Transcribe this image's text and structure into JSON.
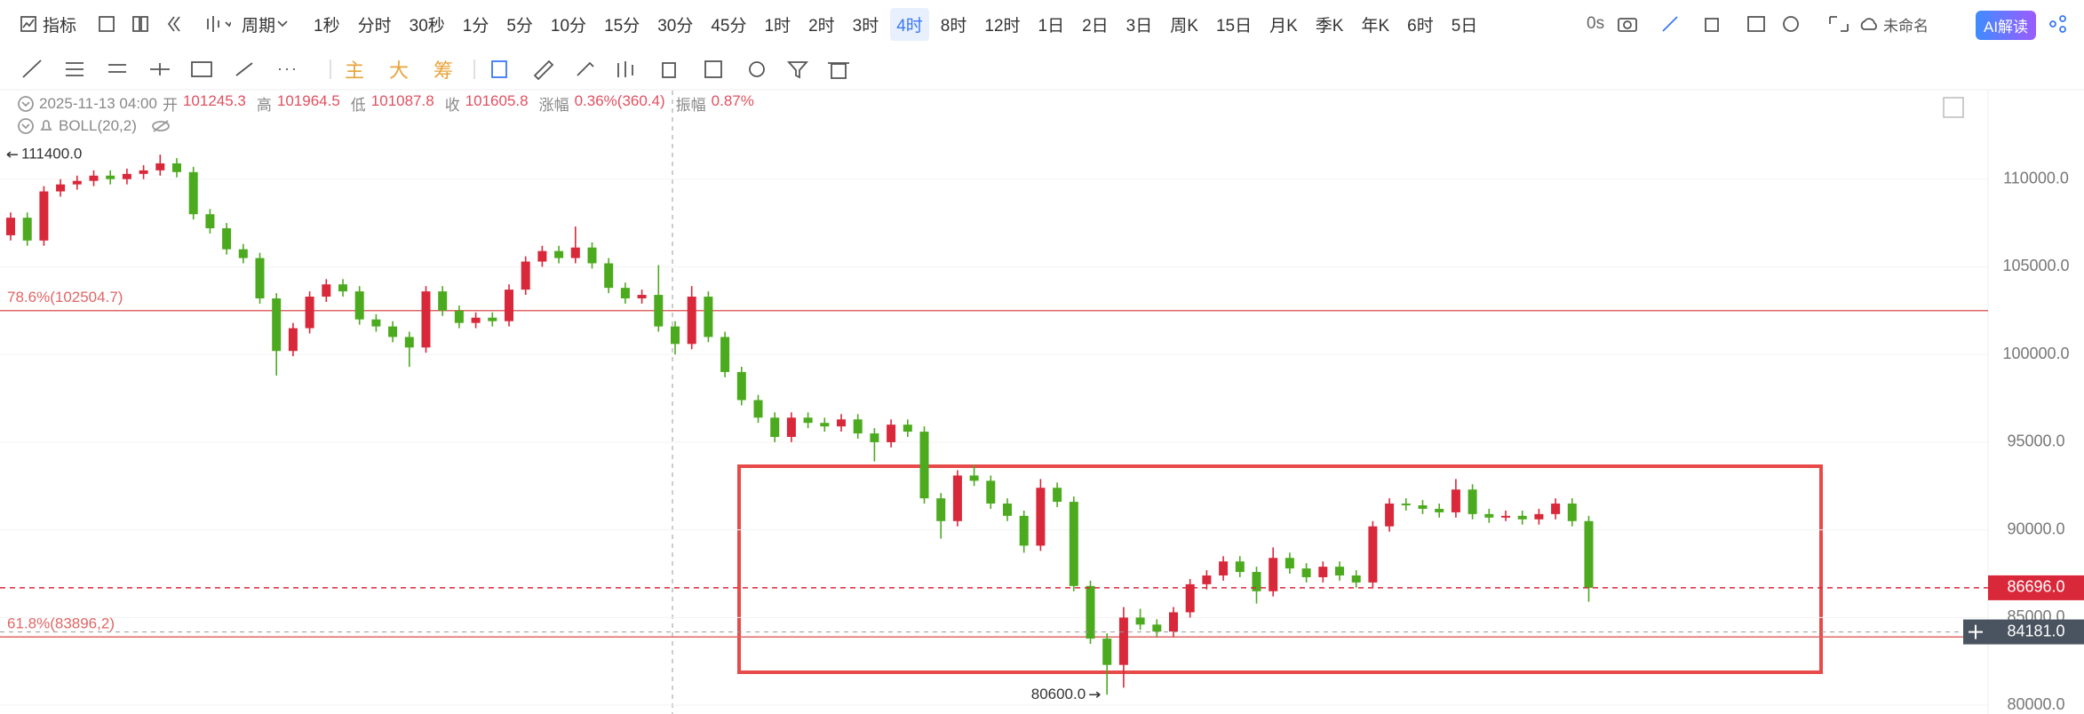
{
  "toolbar": {
    "indicator": "指标",
    "period": "周期",
    "intervals": [
      {
        "label": "1秒"
      },
      {
        "label": "分时"
      },
      {
        "label": "30秒"
      },
      {
        "label": "1分"
      },
      {
        "label": "5分"
      },
      {
        "label": "10分"
      },
      {
        "label": "15分"
      },
      {
        "label": "30分"
      },
      {
        "label": "45分"
      },
      {
        "label": "1时"
      },
      {
        "label": "2时"
      },
      {
        "label": "3时"
      },
      {
        "label": "4时",
        "active": true
      },
      {
        "label": "8时"
      },
      {
        "label": "12时"
      },
      {
        "label": "1日"
      },
      {
        "label": "2日"
      },
      {
        "label": "3日"
      },
      {
        "label": "周K"
      },
      {
        "label": "15日"
      },
      {
        "label": "月K"
      },
      {
        "label": "季K"
      },
      {
        "label": "年K"
      },
      {
        "label": "6时"
      },
      {
        "label": "5日"
      }
    ],
    "timer": "0s",
    "layout_name": "未命名",
    "ai": "AI解读",
    "tools": [
      "主",
      "大",
      "筹"
    ]
  },
  "info": {
    "time": "2025-11-13 04:00",
    "fields": [
      {
        "label": "开",
        "value": "101245.3"
      },
      {
        "label": "高",
        "value": "101964.5"
      },
      {
        "label": "低",
        "value": "101087.8"
      },
      {
        "label": "收",
        "value": "101605.8"
      },
      {
        "label": "涨幅",
        "value": "0.36%(360.4)"
      },
      {
        "label": "振幅",
        "value": "0.87%"
      }
    ],
    "indicator": "BOLL(20,2)"
  },
  "chart_data": {
    "type": "candlestick",
    "up_color": "#d9283a",
    "down_color": "#4caa1f",
    "ylim": [
      79500,
      115050
    ],
    "yticks": [
      {
        "value": 80000,
        "label": "80000.0"
      },
      {
        "value": 85000,
        "label": "85000.0"
      },
      {
        "value": 90000,
        "label": "90000.0"
      },
      {
        "value": 95000,
        "label": "95000.0"
      },
      {
        "value": 100000,
        "label": "100000.0"
      },
      {
        "value": 105000,
        "label": "105000.0"
      },
      {
        "value": 110000,
        "label": "110000.0"
      }
    ],
    "grid": true,
    "ohlc": [
      [
        106800,
        108100,
        106500,
        107800
      ],
      [
        107800,
        108100,
        106200,
        106500
      ],
      [
        106500,
        109600,
        106200,
        109300
      ],
      [
        109300,
        110000,
        109000,
        109700
      ],
      [
        109700,
        110200,
        109400,
        109900
      ],
      [
        109900,
        110500,
        109600,
        110200
      ],
      [
        110200,
        110500,
        109700,
        110000
      ],
      [
        110000,
        110600,
        109700,
        110300
      ],
      [
        110300,
        110800,
        110000,
        110500
      ],
      [
        110500,
        111400,
        110200,
        110900
      ],
      [
        110900,
        111200,
        110100,
        110400
      ],
      [
        110400,
        110700,
        107700,
        108000
      ],
      [
        108000,
        108300,
        106900,
        107200
      ],
      [
        107200,
        107500,
        105700,
        106000
      ],
      [
        106000,
        106300,
        105200,
        105500
      ],
      [
        105500,
        105800,
        102900,
        103200
      ],
      [
        103200,
        103500,
        98800,
        100200
      ],
      [
        100200,
        101800,
        99900,
        101500
      ],
      [
        101500,
        103600,
        101200,
        103300
      ],
      [
        103300,
        104300,
        103000,
        104000
      ],
      [
        104000,
        104300,
        103300,
        103600
      ],
      [
        103600,
        103900,
        101700,
        102000
      ],
      [
        102000,
        102300,
        101300,
        101600
      ],
      [
        101600,
        101900,
        100700,
        101000
      ],
      [
        101000,
        101300,
        99300,
        100400
      ],
      [
        100400,
        103900,
        100100,
        103600
      ],
      [
        103600,
        103900,
        102200,
        102500
      ],
      [
        102500,
        102800,
        101500,
        101800
      ],
      [
        101800,
        102400,
        101500,
        102100
      ],
      [
        102100,
        102400,
        101600,
        101900
      ],
      [
        101900,
        104000,
        101600,
        103700
      ],
      [
        103700,
        105600,
        103400,
        105300
      ],
      [
        105300,
        106200,
        105000,
        105900
      ],
      [
        105900,
        106200,
        105200,
        105500
      ],
      [
        105500,
        107300,
        105200,
        106100
      ],
      [
        106100,
        106400,
        104900,
        105200
      ],
      [
        105200,
        105500,
        103500,
        103800
      ],
      [
        103800,
        104100,
        102900,
        103200
      ],
      [
        103200,
        103700,
        102900,
        103400
      ],
      [
        103400,
        105100,
        101300,
        101600
      ],
      [
        101600,
        101900,
        100000,
        100600
      ],
      [
        100600,
        103900,
        100300,
        103300
      ],
      [
        103300,
        103600,
        100700,
        101000
      ],
      [
        101000,
        101300,
        98700,
        99000
      ],
      [
        99000,
        99300,
        97100,
        97400
      ],
      [
        97400,
        97700,
        96100,
        96400
      ],
      [
        96400,
        96700,
        95000,
        95300
      ],
      [
        95300,
        96700,
        95000,
        96400
      ],
      [
        96400,
        96700,
        95800,
        96100
      ],
      [
        96100,
        96400,
        95600,
        95900
      ],
      [
        95900,
        96600,
        95600,
        96300
      ],
      [
        96300,
        96600,
        95200,
        95500
      ],
      [
        95500,
        95800,
        93900,
        95000
      ],
      [
        95000,
        96300,
        94700,
        96000
      ],
      [
        96000,
        96300,
        95300,
        95600
      ],
      [
        95600,
        95900,
        91500,
        91800
      ],
      [
        91800,
        92100,
        89500,
        90500
      ],
      [
        90500,
        93400,
        90200,
        93100
      ],
      [
        93100,
        93700,
        92500,
        92800
      ],
      [
        92800,
        93100,
        91200,
        91500
      ],
      [
        91500,
        91800,
        90500,
        90800
      ],
      [
        90800,
        91100,
        88700,
        89100
      ],
      [
        89100,
        92900,
        88800,
        92400
      ],
      [
        92400,
        92700,
        91300,
        91600
      ],
      [
        91600,
        91900,
        86500,
        86800
      ],
      [
        86800,
        87100,
        83500,
        83800
      ],
      [
        83800,
        84100,
        80600,
        82300
      ],
      [
        82300,
        85600,
        81000,
        85000
      ],
      [
        85000,
        85500,
        84300,
        84600
      ],
      [
        84600,
        84900,
        83900,
        84200
      ],
      [
        84200,
        85600,
        83900,
        85300
      ],
      [
        85300,
        87200,
        85000,
        86900
      ],
      [
        86900,
        87700,
        86600,
        87400
      ],
      [
        87400,
        88500,
        87100,
        88200
      ],
      [
        88200,
        88500,
        87300,
        87600
      ],
      [
        87600,
        87900,
        85800,
        86500
      ],
      [
        86500,
        89000,
        86200,
        88400
      ],
      [
        88400,
        88700,
        87500,
        87800
      ],
      [
        87800,
        88100,
        87000,
        87300
      ],
      [
        87300,
        88200,
        87000,
        87900
      ],
      [
        87900,
        88200,
        87100,
        87400
      ],
      [
        87400,
        87700,
        86700,
        87000
      ],
      [
        87000,
        90500,
        86700,
        90200
      ],
      [
        90200,
        91800,
        89900,
        91500
      ],
      [
        91500,
        91800,
        91100,
        91400
      ],
      [
        91400,
        91700,
        90900,
        91200
      ],
      [
        91200,
        91500,
        90700,
        91000
      ],
      [
        91000,
        92900,
        90700,
        92300
      ],
      [
        92300,
        92600,
        90600,
        90900
      ],
      [
        90900,
        91200,
        90400,
        90700
      ],
      [
        90700,
        91100,
        90500,
        90800
      ],
      [
        90800,
        91100,
        90300,
        90600
      ],
      [
        90600,
        91200,
        90300,
        90900
      ],
      [
        90900,
        91800,
        90600,
        91500
      ],
      [
        91500,
        91800,
        90200,
        90500
      ],
      [
        90500,
        90800,
        85900,
        86696
      ]
    ],
    "levels": [
      {
        "label": "78.6%(102504.7)",
        "value": 102504.7,
        "color": "#e06666"
      },
      {
        "label": "61.8%(83896,2)",
        "value": 83896.2,
        "color": "#e06666"
      }
    ],
    "high_label": {
      "value": 111400,
      "label": "111400.0"
    },
    "low_label": {
      "value": 80600,
      "label": "80600.0"
    },
    "last_price": {
      "value": 86696,
      "label": "86696.0",
      "color": "#d9283a"
    },
    "crosshair": {
      "value": 84181,
      "label": "84181.0",
      "color": "#4a5460"
    }
  }
}
